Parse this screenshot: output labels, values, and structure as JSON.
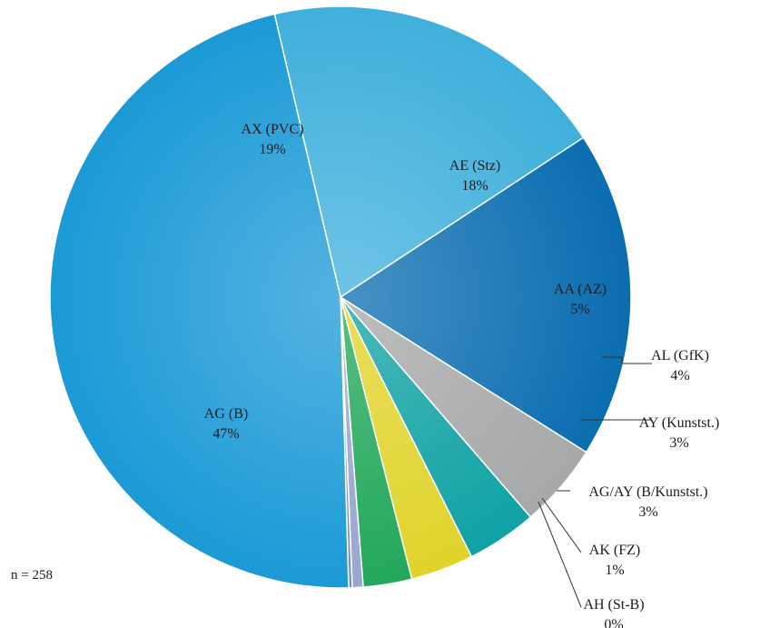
{
  "chart_data": {
    "type": "pie",
    "slices": [
      {
        "name": "AX (PVC)",
        "percent_label": "19%",
        "value": 19.4,
        "color": "#3fb0dc"
      },
      {
        "name": "AE (Stz)",
        "percent_label": "18%",
        "value": 18.2,
        "color": "#0a6db0"
      },
      {
        "name": "AA (AZ)",
        "percent_label": "5%",
        "value": 4.7,
        "color": "#a6a8a9"
      },
      {
        "name": "AL (GfK)",
        "percent_label": "4%",
        "value": 3.9,
        "color": "#0fa2a4"
      },
      {
        "name": "AY (Kunstst.)",
        "percent_label": "3%",
        "value": 3.5,
        "color": "#e0d42a"
      },
      {
        "name": "AG/AY (B/Kunstst.)",
        "percent_label": "3%",
        "value": 2.7,
        "color": "#21a85a"
      },
      {
        "name": "AK (FZ)",
        "percent_label": "1%",
        "value": 0.6,
        "color": "#9aa5ce"
      },
      {
        "name": "AH (St-B)",
        "percent_label": "0%",
        "value": 0.2,
        "color": "#7b8ec0"
      },
      {
        "name": "AG (B)",
        "percent_label": "47%",
        "value": 46.8,
        "color": "#1b9ad6"
      }
    ],
    "note": "n = 258"
  }
}
